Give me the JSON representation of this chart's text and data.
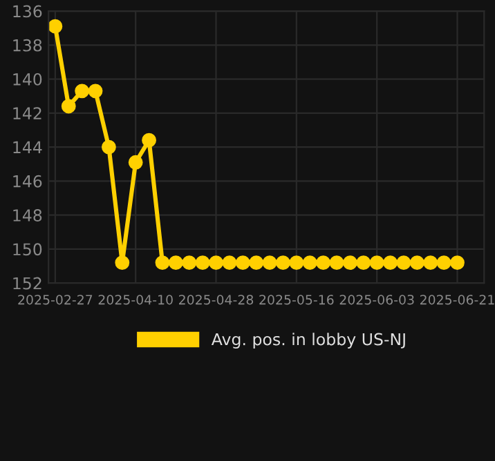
{
  "chart_data": {
    "type": "line",
    "categories": [
      "2025-02-27",
      null,
      null,
      null,
      null,
      null,
      "2025-04-10",
      null,
      null,
      null,
      null,
      null,
      "2025-04-28",
      null,
      null,
      null,
      null,
      null,
      "2025-05-16",
      null,
      null,
      null,
      null,
      null,
      "2025-06-03",
      null,
      null,
      null,
      null,
      null,
      "2025-06-21"
    ],
    "series": [
      {
        "name": "Avg. pos. in lobby US-NJ",
        "color": "#ffd000",
        "values": [
          136.9,
          141.6,
          140.7,
          140.7,
          144.0,
          150.8,
          144.9,
          143.6,
          150.8,
          150.8,
          150.8,
          150.8,
          150.8,
          150.8,
          150.8,
          150.8,
          150.8,
          150.8,
          150.8,
          150.8,
          150.8,
          150.8,
          150.8,
          150.8,
          150.8,
          150.8,
          150.8,
          150.8,
          150.8,
          150.8,
          150.8
        ]
      }
    ],
    "ylim": [
      152,
      136
    ],
    "yticks": [
      136,
      138,
      140,
      142,
      144,
      146,
      148,
      150,
      152
    ],
    "grid": true,
    "legend": "bottom",
    "marker": "circle",
    "line_style": "solid"
  }
}
